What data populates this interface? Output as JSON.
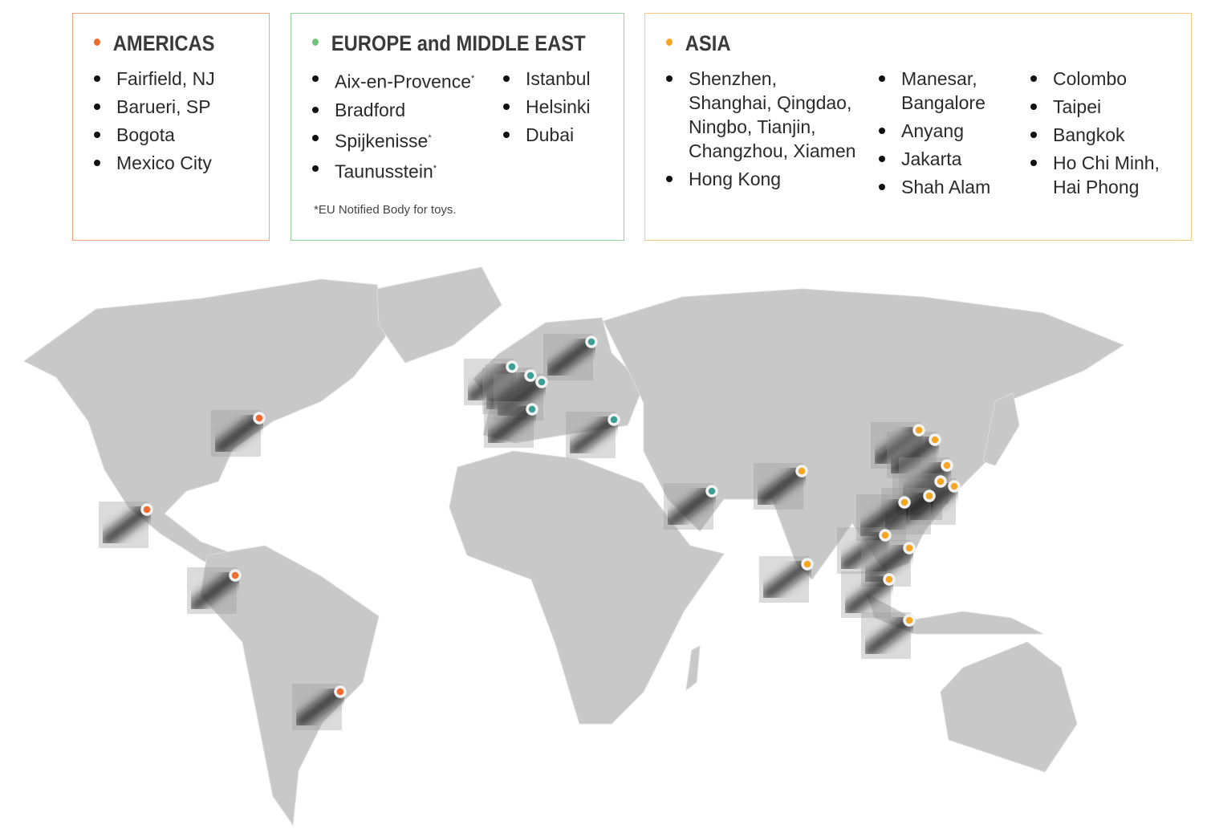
{
  "colors": {
    "americas": "#f26b2c",
    "europe": "#6cc47c",
    "asia": "#f5a623",
    "europe_marker": "#3d9e93",
    "land": "#c8c8c8"
  },
  "americas": {
    "title": "AMERICAS",
    "items": [
      "Fairfield, NJ",
      "Barueri, SP",
      "Bogota",
      "Mexico City"
    ]
  },
  "europe": {
    "title": "EUROPE and MIDDLE EAST",
    "col1": [
      {
        "name": "Aix-en-Provence",
        "mark": "*"
      },
      {
        "name": "Bradford",
        "mark": ""
      },
      {
        "name": "Spijkenisse",
        "mark": "*"
      },
      {
        "name": "Taunusstein",
        "mark": "*"
      }
    ],
    "col2": [
      "Istanbul",
      "Helsinki",
      "Dubai"
    ],
    "note": "*EU Notified Body for toys."
  },
  "asia": {
    "title": "ASIA",
    "col1": [
      "Shenzhen, Shanghai, Qingdao, Ningbo, Tianjin, Changzhou, Xiamen",
      "Hong Kong"
    ],
    "col2": [
      "Manesar, Bangalore",
      "Anyang",
      "Jakarta",
      "Shah Alam"
    ],
    "col3": [
      "Colombo",
      "Taipei",
      "Bangkok",
      "Ho Chi Minh, Hai Phong"
    ]
  }
}
